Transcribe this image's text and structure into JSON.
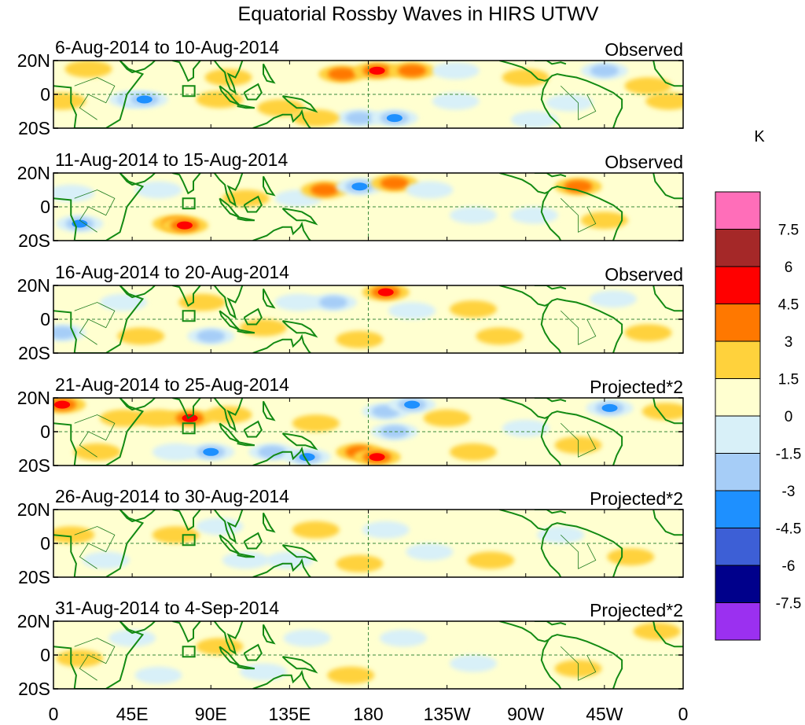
{
  "chart_data": {
    "type": "heatmap",
    "title": "Equatorial Rossby Waves in HIRS UTWV",
    "units": "K",
    "x_ticks": [
      "0",
      "45E",
      "90E",
      "135E",
      "180",
      "135W",
      "90W",
      "45W",
      "0"
    ],
    "y_ticks": [
      "20N",
      "0",
      "20S"
    ],
    "lon_range": [
      0,
      360
    ],
    "lat_range": [
      -20,
      20
    ],
    "colorbar": {
      "levels": [
        "-7.5",
        "-6",
        "-4.5",
        "-3",
        "-1.5",
        "0",
        "1.5",
        "3",
        "4.5",
        "6",
        "7.5"
      ],
      "colors": [
        "#9b30f0",
        "#00008b",
        "#3d5fd6",
        "#1e90ff",
        "#a6cdf7",
        "#d8f0f8",
        "#ffffd0",
        "#ffd23c",
        "#ff7800",
        "#ff0000",
        "#a52828",
        "#ff6eb9"
      ]
    },
    "panels": [
      {
        "label": "6-Aug-2014 to 10-Aug-2014",
        "type": "Observed",
        "blobs": [
          {
            "lon": 5,
            "lat": -4,
            "value": 1.5
          },
          {
            "lon": 20,
            "lat": 15,
            "value": 1.5
          },
          {
            "lon": 45,
            "lat": -3,
            "value": -3
          },
          {
            "lon": 52,
            "lat": -3,
            "value": -4.5
          },
          {
            "lon": 95,
            "lat": -3,
            "value": 2
          },
          {
            "lon": 100,
            "lat": 10,
            "value": 1.5
          },
          {
            "lon": 130,
            "lat": -8,
            "value": 1.5
          },
          {
            "lon": 165,
            "lat": 12,
            "value": 3
          },
          {
            "lon": 185,
            "lat": 14,
            "value": 4.5
          },
          {
            "lon": 205,
            "lat": 14,
            "value": 3
          },
          {
            "lon": 175,
            "lat": -14,
            "value": -3
          },
          {
            "lon": 195,
            "lat": -14,
            "value": -4.5
          },
          {
            "lon": 150,
            "lat": -14,
            "value": 2
          },
          {
            "lon": 230,
            "lat": -4,
            "value": -1.5
          },
          {
            "lon": 230,
            "lat": 14,
            "value": -1.5
          },
          {
            "lon": 270,
            "lat": 10,
            "value": 1.5
          },
          {
            "lon": 275,
            "lat": -15,
            "value": -1.5
          },
          {
            "lon": 295,
            "lat": -5,
            "value": -1.5
          },
          {
            "lon": 315,
            "lat": 14,
            "value": -3
          },
          {
            "lon": 340,
            "lat": 5,
            "value": 1.5
          },
          {
            "lon": 352,
            "lat": -4,
            "value": 1.5
          }
        ]
      },
      {
        "label": "11-Aug-2014 to 15-Aug-2014",
        "type": "Observed",
        "blobs": [
          {
            "lon": 10,
            "lat": 8,
            "value": -1.5
          },
          {
            "lon": 15,
            "lat": -10,
            "value": -4.5
          },
          {
            "lon": 60,
            "lat": 10,
            "value": -1.5
          },
          {
            "lon": 70,
            "lat": -10,
            "value": 3
          },
          {
            "lon": 75,
            "lat": -11,
            "value": 4.5
          },
          {
            "lon": 110,
            "lat": 5,
            "value": 1.5
          },
          {
            "lon": 140,
            "lat": 5,
            "value": -1.5
          },
          {
            "lon": 155,
            "lat": 10,
            "value": 3
          },
          {
            "lon": 175,
            "lat": 12,
            "value": -4.5
          },
          {
            "lon": 195,
            "lat": 14,
            "value": 3
          },
          {
            "lon": 215,
            "lat": 10,
            "value": -1.5
          },
          {
            "lon": 240,
            "lat": -5,
            "value": -1.5
          },
          {
            "lon": 275,
            "lat": -5,
            "value": -1.5
          },
          {
            "lon": 300,
            "lat": 12,
            "value": 3
          },
          {
            "lon": 315,
            "lat": -8,
            "value": 2
          }
        ]
      },
      {
        "label": "16-Aug-2014 to 20-Aug-2014",
        "type": "Observed",
        "blobs": [
          {
            "lon": 5,
            "lat": -8,
            "value": -3
          },
          {
            "lon": 40,
            "lat": 10,
            "value": -1.5
          },
          {
            "lon": 50,
            "lat": -10,
            "value": 1.5
          },
          {
            "lon": 85,
            "lat": 10,
            "value": 1.5
          },
          {
            "lon": 90,
            "lat": -10,
            "value": -3
          },
          {
            "lon": 120,
            "lat": -5,
            "value": 1.5
          },
          {
            "lon": 140,
            "lat": 10,
            "value": -1.5
          },
          {
            "lon": 160,
            "lat": 10,
            "value": -3
          },
          {
            "lon": 175,
            "lat": -12,
            "value": 1.5
          },
          {
            "lon": 190,
            "lat": 16,
            "value": 4.5
          },
          {
            "lon": 205,
            "lat": 5,
            "value": -1.5
          },
          {
            "lon": 240,
            "lat": 6,
            "value": 1.5
          },
          {
            "lon": 255,
            "lat": -10,
            "value": 1.5
          },
          {
            "lon": 320,
            "lat": 12,
            "value": -1.5
          },
          {
            "lon": 340,
            "lat": -8,
            "value": 1.5
          }
        ]
      },
      {
        "label": "21-Aug-2014 to 25-Aug-2014",
        "type": "Projected*2",
        "blobs": [
          {
            "lon": 5,
            "lat": 16,
            "value": 4.5
          },
          {
            "lon": 25,
            "lat": -12,
            "value": 1.5
          },
          {
            "lon": 40,
            "lat": 8,
            "value": 1.5
          },
          {
            "lon": 60,
            "lat": 8,
            "value": 1.5
          },
          {
            "lon": 70,
            "lat": -12,
            "value": -1.5
          },
          {
            "lon": 78,
            "lat": 8,
            "value": 4.5
          },
          {
            "lon": 90,
            "lat": -12,
            "value": -4.5
          },
          {
            "lon": 100,
            "lat": 10,
            "value": 1.5
          },
          {
            "lon": 125,
            "lat": -12,
            "value": -3
          },
          {
            "lon": 145,
            "lat": -15,
            "value": -4.5
          },
          {
            "lon": 150,
            "lat": 5,
            "value": 1.5
          },
          {
            "lon": 175,
            "lat": -12,
            "value": 3
          },
          {
            "lon": 185,
            "lat": -15,
            "value": 4.5
          },
          {
            "lon": 190,
            "lat": 12,
            "value": -3
          },
          {
            "lon": 205,
            "lat": 16,
            "value": -4.5
          },
          {
            "lon": 195,
            "lat": 0,
            "value": -3
          },
          {
            "lon": 225,
            "lat": 8,
            "value": 1.5
          },
          {
            "lon": 240,
            "lat": -12,
            "value": 1.5
          },
          {
            "lon": 270,
            "lat": 2,
            "value": -1.5
          },
          {
            "lon": 300,
            "lat": -8,
            "value": 1.5
          },
          {
            "lon": 318,
            "lat": 14,
            "value": -4.5
          },
          {
            "lon": 350,
            "lat": 12,
            "value": 1.5
          }
        ]
      },
      {
        "label": "26-Aug-2014 to 30-Aug-2014",
        "type": "Projected*2",
        "blobs": [
          {
            "lon": 10,
            "lat": 5,
            "value": 1.5
          },
          {
            "lon": 30,
            "lat": -10,
            "value": -1.5
          },
          {
            "lon": 70,
            "lat": 5,
            "value": 1.5
          },
          {
            "lon": 95,
            "lat": 10,
            "value": -1.5
          },
          {
            "lon": 110,
            "lat": -10,
            "value": -1.5
          },
          {
            "lon": 135,
            "lat": -10,
            "value": -1.5
          },
          {
            "lon": 150,
            "lat": 8,
            "value": 1.5
          },
          {
            "lon": 175,
            "lat": -12,
            "value": 2
          },
          {
            "lon": 190,
            "lat": 8,
            "value": -1.5
          },
          {
            "lon": 215,
            "lat": -5,
            "value": -1.5
          },
          {
            "lon": 250,
            "lat": -10,
            "value": 1.5
          },
          {
            "lon": 290,
            "lat": 5,
            "value": -1.5
          },
          {
            "lon": 330,
            "lat": -8,
            "value": 1.5
          }
        ]
      },
      {
        "label": "31-Aug-2014 to 4-Sep-2014",
        "type": "Projected*2",
        "blobs": [
          {
            "lon": 15,
            "lat": -2,
            "value": 1.5
          },
          {
            "lon": 45,
            "lat": 10,
            "value": -1.5
          },
          {
            "lon": 60,
            "lat": -12,
            "value": -1.5
          },
          {
            "lon": 95,
            "lat": 5,
            "value": 1.5
          },
          {
            "lon": 120,
            "lat": -10,
            "value": -1.5
          },
          {
            "lon": 145,
            "lat": 10,
            "value": -1.5
          },
          {
            "lon": 170,
            "lat": -12,
            "value": 1.5
          },
          {
            "lon": 200,
            "lat": 10,
            "value": -1.5
          },
          {
            "lon": 240,
            "lat": -5,
            "value": -1.5
          },
          {
            "lon": 300,
            "lat": -8,
            "value": 1.5
          },
          {
            "lon": 345,
            "lat": 14,
            "value": 2
          }
        ]
      }
    ]
  }
}
